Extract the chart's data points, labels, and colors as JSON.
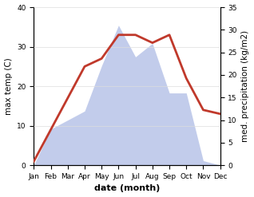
{
  "months": [
    "Jan",
    "Feb",
    "Mar",
    "Apr",
    "May",
    "Jun",
    "Jul",
    "Aug",
    "Sep",
    "Oct",
    "Nov",
    "Dec"
  ],
  "month_indices": [
    1,
    2,
    3,
    4,
    5,
    6,
    7,
    8,
    9,
    10,
    11,
    12
  ],
  "temperature": [
    1,
    9,
    17,
    25,
    27,
    33,
    33,
    31,
    33,
    22,
    14,
    13
  ],
  "precipitation": [
    0,
    8,
    10,
    12,
    22,
    31,
    24,
    27,
    16,
    16,
    1,
    0
  ],
  "temp_color": "#c0392b",
  "precip_fill_color": "#b8c4e8",
  "precip_fill_alpha": 0.85,
  "temp_ylim": [
    0,
    40
  ],
  "precip_ylim": [
    0,
    35
  ],
  "temp_yticks": [
    0,
    10,
    20,
    30,
    40
  ],
  "precip_yticks": [
    0,
    5,
    10,
    15,
    20,
    25,
    30,
    35
  ],
  "xlabel": "date (month)",
  "ylabel_left": "max temp (C)",
  "ylabel_right": "med. precipitation (kg/m2)",
  "line_width": 2.0,
  "background_color": "#ffffff",
  "xlabel_fontsize": 8,
  "ylabel_fontsize": 7.5,
  "tick_fontsize": 6.5
}
